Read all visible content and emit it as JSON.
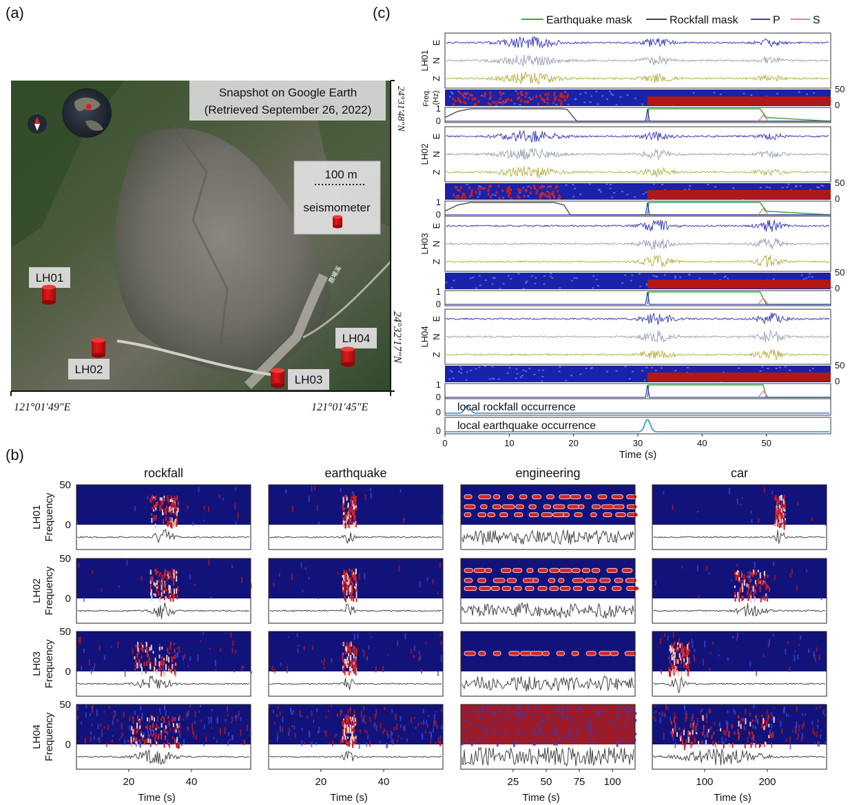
{
  "panels": {
    "a": {
      "label": "(a)",
      "snapshot_line1": "Snapshot on Google Earth",
      "snapshot_line2": "(Retrieved September 26, 2022)",
      "scale_text": "100 m",
      "legend_text": "seismometer",
      "river_label": "鹿場溪",
      "lat_top": "24°31′48″N",
      "lat_bottom": "24°32′17″N",
      "lon_left": "121°01′49″E",
      "lon_right": "121°01′45″E",
      "stations": [
        "LH01",
        "LH02",
        "LH03",
        "LH04"
      ]
    },
    "b": {
      "label": "(b)",
      "columns": [
        {
          "title": "rockfall",
          "ticks": [
            "20",
            "40"
          ]
        },
        {
          "title": "earthquake",
          "ticks": [
            "20",
            "40"
          ]
        },
        {
          "title": "engineering",
          "ticks": [
            "25",
            "50",
            "75",
            "100"
          ]
        },
        {
          "title": "car",
          "ticks": [
            "100",
            "200"
          ]
        }
      ],
      "row_labels": [
        "LH01",
        "LH02",
        "LH03",
        "LH04"
      ],
      "ylabel": "Frequency",
      "yticks": [
        "50",
        "0"
      ],
      "xlabel": "Time (s)"
    },
    "c": {
      "label": "(c)",
      "legend": [
        {
          "name": "Earthquake mask",
          "color": "#3aa845"
        },
        {
          "name": "Rockfall mask",
          "color": "#444444"
        },
        {
          "name": "P",
          "color": "#3b3fb8"
        },
        {
          "name": "S",
          "color": "#f07a7a"
        }
      ],
      "stations": [
        "LH01",
        "LH02",
        "LH03",
        "LH04"
      ],
      "components": [
        "E",
        "N",
        "Z"
      ],
      "freq_label": "Freq.",
      "freq_unit": "(Hz)",
      "freq_ticks": [
        "50",
        "0"
      ],
      "mask_ticks": [
        "1",
        "0"
      ],
      "occurrence_labels": [
        "local rockfall occurrence",
        "local earthquake occurrence"
      ],
      "xticks": [
        "0",
        "10",
        "20",
        "30",
        "40",
        "50"
      ],
      "xlabel": "Time (s)"
    }
  },
  "chart_data": [
    {
      "type": "line",
      "title": "",
      "xlabel": "Time (s)",
      "xlim": [
        0,
        60
      ],
      "series": [
        {
          "name": "Rockfall mask",
          "station": "LH01",
          "x": [
            0,
            2,
            4,
            18,
            19,
            20.5,
            60
          ],
          "values": [
            0.3,
            0.8,
            1,
            1,
            0.95,
            0,
            0
          ]
        },
        {
          "name": "Earthquake mask",
          "station": "LH01",
          "x": [
            31.5,
            31.7,
            49,
            50,
            60
          ],
          "values": [
            0,
            1,
            1,
            0.3,
            0
          ]
        },
        {
          "name": "Rockfall mask",
          "station": "LH02",
          "x": [
            0,
            2,
            4,
            17,
            18.5,
            19.5,
            60
          ],
          "values": [
            0.3,
            0.8,
            1,
            1,
            0.8,
            0,
            0
          ]
        },
        {
          "name": "Earthquake mask",
          "station": "LH02",
          "x": [
            31.5,
            31.7,
            49,
            50,
            60
          ],
          "values": [
            0,
            1,
            1,
            0.3,
            0
          ]
        },
        {
          "name": "Earthquake mask",
          "station": "LH03",
          "x": [
            31.5,
            31.7,
            49,
            50,
            60
          ],
          "values": [
            0,
            1,
            1,
            0,
            0
          ]
        },
        {
          "name": "Earthquake mask",
          "station": "LH04",
          "x": [
            31.5,
            31.7,
            49.5,
            50,
            60
          ],
          "values": [
            0,
            1,
            1,
            0,
            0
          ]
        },
        {
          "name": "local rockfall occurrence",
          "x": [
            0,
            3.5,
            60
          ],
          "values": [
            0,
            0.6,
            0
          ]
        },
        {
          "name": "local earthquake occurrence",
          "x": [
            0,
            31.5,
            60
          ],
          "values": [
            0,
            1,
            0
          ]
        }
      ],
      "p_pick_time": 31.5,
      "s_pick_time": 49.5
    }
  ]
}
